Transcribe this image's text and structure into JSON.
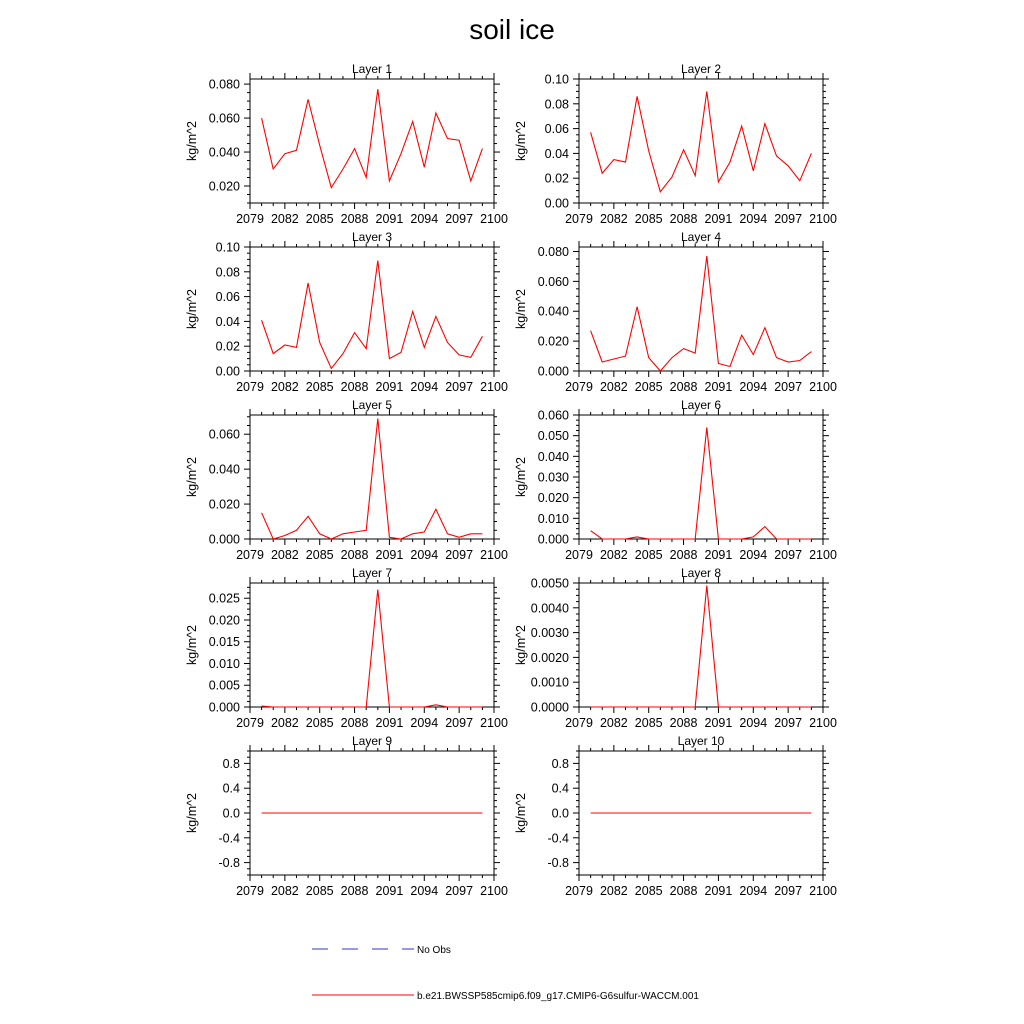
{
  "title": "soil ice",
  "legend": [
    {
      "label": "No Obs",
      "color": "#3333cc",
      "style": "dashed"
    },
    {
      "label": "b.e21.BWSSP585cmip6.f09_g17.CMIP6-G6sulfur-WACCM.001",
      "color": "#ff0000",
      "style": "solid"
    }
  ],
  "chart_data": [
    {
      "type": "line",
      "title": "Layer 1",
      "ylabel": "kg/m^2",
      "xlim": [
        2079,
        2100
      ],
      "xticks": [
        "2079",
        "2082",
        "2085",
        "2088",
        "2091",
        "2094",
        "2097",
        "2100"
      ],
      "ylim": [
        0.01,
        0.083
      ],
      "yticks": [
        "0.020",
        "0.040",
        "0.060",
        "0.080"
      ],
      "ytick_values": [
        0.02,
        0.04,
        0.06,
        0.08
      ],
      "series": [
        {
          "name": "b.e21.BWSSP585cmip6.f09_g17.CMIP6-G6sulfur-WACCM.001",
          "x": [
            2080,
            2081,
            2082,
            2083,
            2084,
            2085,
            2086,
            2087,
            2088,
            2089,
            2090,
            2091,
            2092,
            2093,
            2094,
            2095,
            2096,
            2097,
            2098,
            2099
          ],
          "values": [
            0.06,
            0.03,
            0.039,
            0.041,
            0.071,
            0.044,
            0.019,
            0.03,
            0.042,
            0.025,
            0.077,
            0.023,
            0.039,
            0.058,
            0.031,
            0.063,
            0.048,
            0.047,
            0.023,
            0.042
          ]
        }
      ]
    },
    {
      "type": "line",
      "title": "Layer 2",
      "ylabel": "kg/m^2",
      "xlim": [
        2079,
        2100
      ],
      "xticks": [
        "2079",
        "2082",
        "2085",
        "2088",
        "2091",
        "2094",
        "2097",
        "2100"
      ],
      "ylim": [
        0.0,
        0.1
      ],
      "yticks": [
        "0.00",
        "0.02",
        "0.04",
        "0.06",
        "0.08",
        "0.10"
      ],
      "ytick_values": [
        0,
        0.02,
        0.04,
        0.06,
        0.08,
        0.1
      ],
      "series": [
        {
          "name": "b.e21.BWSSP585cmip6.f09_g17.CMIP6-G6sulfur-WACCM.001",
          "x": [
            2080,
            2081,
            2082,
            2083,
            2084,
            2085,
            2086,
            2087,
            2088,
            2089,
            2090,
            2091,
            2092,
            2093,
            2094,
            2095,
            2096,
            2097,
            2098,
            2099
          ],
          "values": [
            0.057,
            0.024,
            0.035,
            0.033,
            0.086,
            0.042,
            0.009,
            0.021,
            0.043,
            0.022,
            0.09,
            0.017,
            0.033,
            0.062,
            0.026,
            0.064,
            0.038,
            0.03,
            0.018,
            0.04
          ]
        }
      ]
    },
    {
      "type": "line",
      "title": "Layer 3",
      "ylabel": "kg/m^2",
      "xlim": [
        2079,
        2100
      ],
      "xticks": [
        "2079",
        "2082",
        "2085",
        "2088",
        "2091",
        "2094",
        "2097",
        "2100"
      ],
      "ylim": [
        0.0,
        0.1
      ],
      "yticks": [
        "0.00",
        "0.02",
        "0.04",
        "0.06",
        "0.08",
        "0.10"
      ],
      "ytick_values": [
        0,
        0.02,
        0.04,
        0.06,
        0.08,
        0.1
      ],
      "series": [
        {
          "name": "b.e21.BWSSP585cmip6.f09_g17.CMIP6-G6sulfur-WACCM.001",
          "x": [
            2080,
            2081,
            2082,
            2083,
            2084,
            2085,
            2086,
            2087,
            2088,
            2089,
            2090,
            2091,
            2092,
            2093,
            2094,
            2095,
            2096,
            2097,
            2098,
            2099
          ],
          "values": [
            0.041,
            0.014,
            0.021,
            0.019,
            0.071,
            0.023,
            0.002,
            0.014,
            0.031,
            0.018,
            0.089,
            0.01,
            0.015,
            0.048,
            0.019,
            0.044,
            0.023,
            0.013,
            0.011,
            0.028
          ]
        }
      ]
    },
    {
      "type": "line",
      "title": "Layer 4",
      "ylabel": "kg/m^2",
      "xlim": [
        2079,
        2100
      ],
      "xticks": [
        "2079",
        "2082",
        "2085",
        "2088",
        "2091",
        "2094",
        "2097",
        "2100"
      ],
      "ylim": [
        0.0,
        0.083
      ],
      "yticks": [
        "0.000",
        "0.020",
        "0.040",
        "0.060",
        "0.080"
      ],
      "ytick_values": [
        0,
        0.02,
        0.04,
        0.06,
        0.08
      ],
      "series": [
        {
          "name": "b.e21.BWSSP585cmip6.f09_g17.CMIP6-G6sulfur-WACCM.001",
          "x": [
            2080,
            2081,
            2082,
            2083,
            2084,
            2085,
            2086,
            2087,
            2088,
            2089,
            2090,
            2091,
            2092,
            2093,
            2094,
            2095,
            2096,
            2097,
            2098,
            2099
          ],
          "values": [
            0.027,
            0.006,
            0.008,
            0.01,
            0.043,
            0.009,
            0.0,
            0.009,
            0.015,
            0.012,
            0.077,
            0.005,
            0.003,
            0.024,
            0.011,
            0.029,
            0.009,
            0.006,
            0.007,
            0.013
          ]
        }
      ]
    },
    {
      "type": "line",
      "title": "Layer 5",
      "ylabel": "kg/m^2",
      "xlim": [
        2079,
        2100
      ],
      "xticks": [
        "2079",
        "2082",
        "2085",
        "2088",
        "2091",
        "2094",
        "2097",
        "2100"
      ],
      "ylim": [
        0.0,
        0.071
      ],
      "yticks": [
        "0.000",
        "0.020",
        "0.040",
        "0.060"
      ],
      "ytick_values": [
        0,
        0.02,
        0.04,
        0.06
      ],
      "series": [
        {
          "name": "b.e21.BWSSP585cmip6.f09_g17.CMIP6-G6sulfur-WACCM.001",
          "x": [
            2080,
            2081,
            2082,
            2083,
            2084,
            2085,
            2086,
            2087,
            2088,
            2089,
            2090,
            2091,
            2092,
            2093,
            2094,
            2095,
            2096,
            2097,
            2098,
            2099
          ],
          "values": [
            0.015,
            0.0,
            0.002,
            0.005,
            0.013,
            0.003,
            0.0,
            0.003,
            0.004,
            0.005,
            0.069,
            0.001,
            0.0,
            0.003,
            0.004,
            0.017,
            0.003,
            0.001,
            0.003,
            0.003
          ]
        }
      ]
    },
    {
      "type": "line",
      "title": "Layer 6",
      "ylabel": "kg/m^2",
      "xlim": [
        2079,
        2100
      ],
      "xticks": [
        "2079",
        "2082",
        "2085",
        "2088",
        "2091",
        "2094",
        "2097",
        "2100"
      ],
      "ylim": [
        0.0,
        0.06
      ],
      "yticks": [
        "0.000",
        "0.010",
        "0.020",
        "0.030",
        "0.040",
        "0.050",
        "0.060"
      ],
      "ytick_values": [
        0,
        0.01,
        0.02,
        0.03,
        0.04,
        0.05,
        0.06
      ],
      "series": [
        {
          "name": "b.e21.BWSSP585cmip6.f09_g17.CMIP6-G6sulfur-WACCM.001",
          "x": [
            2080,
            2081,
            2082,
            2083,
            2084,
            2085,
            2086,
            2087,
            2088,
            2089,
            2090,
            2091,
            2092,
            2093,
            2094,
            2095,
            2096,
            2097,
            2098,
            2099
          ],
          "values": [
            0.004,
            0.0,
            0.0,
            0.0,
            0.001,
            0.0,
            0.0,
            0.0,
            0.0,
            0.0,
            0.054,
            0.0,
            0.0,
            0.0,
            0.001,
            0.006,
            0.0,
            0.0,
            0.0,
            0.0
          ]
        }
      ]
    },
    {
      "type": "line",
      "title": "Layer 7",
      "ylabel": "kg/m^2",
      "xlim": [
        2079,
        2100
      ],
      "xticks": [
        "2079",
        "2082",
        "2085",
        "2088",
        "2091",
        "2094",
        "2097",
        "2100"
      ],
      "ylim": [
        0.0,
        0.0285
      ],
      "yticks": [
        "0.000",
        "0.005",
        "0.010",
        "0.015",
        "0.020",
        "0.025"
      ],
      "ytick_values": [
        0,
        0.005,
        0.01,
        0.015,
        0.02,
        0.025
      ],
      "series": [
        {
          "name": "b.e21.BWSSP585cmip6.f09_g17.CMIP6-G6sulfur-WACCM.001",
          "x": [
            2080,
            2081,
            2082,
            2083,
            2084,
            2085,
            2086,
            2087,
            2088,
            2089,
            2090,
            2091,
            2092,
            2093,
            2094,
            2095,
            2096,
            2097,
            2098,
            2099
          ],
          "values": [
            0.0002,
            0.0,
            0.0,
            0.0,
            0.0,
            0.0,
            0.0,
            0.0,
            0.0,
            0.0,
            0.027,
            0.0,
            0.0,
            0.0,
            0.0,
            0.0005,
            0.0,
            0.0,
            0.0,
            0.0
          ]
        }
      ]
    },
    {
      "type": "line",
      "title": "Layer 8",
      "ylabel": "kg/m^2",
      "xlim": [
        2079,
        2100
      ],
      "xticks": [
        "2079",
        "2082",
        "2085",
        "2088",
        "2091",
        "2094",
        "2097",
        "2100"
      ],
      "ylim": [
        0.0,
        0.005
      ],
      "yticks": [
        "0.0000",
        "0.0010",
        "0.0020",
        "0.0030",
        "0.0040",
        "0.0050"
      ],
      "ytick_values": [
        0,
        0.001,
        0.002,
        0.003,
        0.004,
        0.005
      ],
      "series": [
        {
          "name": "b.e21.BWSSP585cmip6.f09_g17.CMIP6-G6sulfur-WACCM.001",
          "x": [
            2080,
            2081,
            2082,
            2083,
            2084,
            2085,
            2086,
            2087,
            2088,
            2089,
            2090,
            2091,
            2092,
            2093,
            2094,
            2095,
            2096,
            2097,
            2098,
            2099
          ],
          "values": [
            0,
            0,
            0,
            0,
            0,
            0,
            0,
            0,
            0,
            0,
            0.0049,
            0,
            0,
            0,
            0,
            0,
            0,
            0,
            0,
            0
          ]
        }
      ]
    },
    {
      "type": "line",
      "title": "Layer 9",
      "ylabel": "kg/m^2",
      "xlim": [
        2079,
        2100
      ],
      "xticks": [
        "2079",
        "2082",
        "2085",
        "2088",
        "2091",
        "2094",
        "2097",
        "2100"
      ],
      "ylim": [
        -1.0,
        1.0
      ],
      "yticks": [
        "-0.8",
        "-0.4",
        "0.0",
        "0.4",
        "0.8"
      ],
      "ytick_values": [
        -0.8,
        -0.4,
        0,
        0.4,
        0.8
      ],
      "series": [
        {
          "name": "b.e21.BWSSP585cmip6.f09_g17.CMIP6-G6sulfur-WACCM.001",
          "x": [
            2080,
            2081,
            2082,
            2083,
            2084,
            2085,
            2086,
            2087,
            2088,
            2089,
            2090,
            2091,
            2092,
            2093,
            2094,
            2095,
            2096,
            2097,
            2098,
            2099
          ],
          "values": [
            0,
            0,
            0,
            0,
            0,
            0,
            0,
            0,
            0,
            0,
            0,
            0,
            0,
            0,
            0,
            0,
            0,
            0,
            0,
            0
          ]
        }
      ]
    },
    {
      "type": "line",
      "title": "Layer 10",
      "ylabel": "kg/m^2",
      "xlim": [
        2079,
        2100
      ],
      "xticks": [
        "2079",
        "2082",
        "2085",
        "2088",
        "2091",
        "2094",
        "2097",
        "2100"
      ],
      "ylim": [
        -1.0,
        1.0
      ],
      "yticks": [
        "-0.8",
        "-0.4",
        "0.0",
        "0.4",
        "0.8"
      ],
      "ytick_values": [
        -0.8,
        -0.4,
        0,
        0.4,
        0.8
      ],
      "series": [
        {
          "name": "b.e21.BWSSP585cmip6.f09_g17.CMIP6-G6sulfur-WACCM.001",
          "x": [
            2080,
            2081,
            2082,
            2083,
            2084,
            2085,
            2086,
            2087,
            2088,
            2089,
            2090,
            2091,
            2092,
            2093,
            2094,
            2095,
            2096,
            2097,
            2098,
            2099
          ],
          "values": [
            0,
            0,
            0,
            0,
            0,
            0,
            0,
            0,
            0,
            0,
            0,
            0,
            0,
            0,
            0,
            0,
            0,
            0,
            0,
            0
          ]
        }
      ]
    }
  ]
}
